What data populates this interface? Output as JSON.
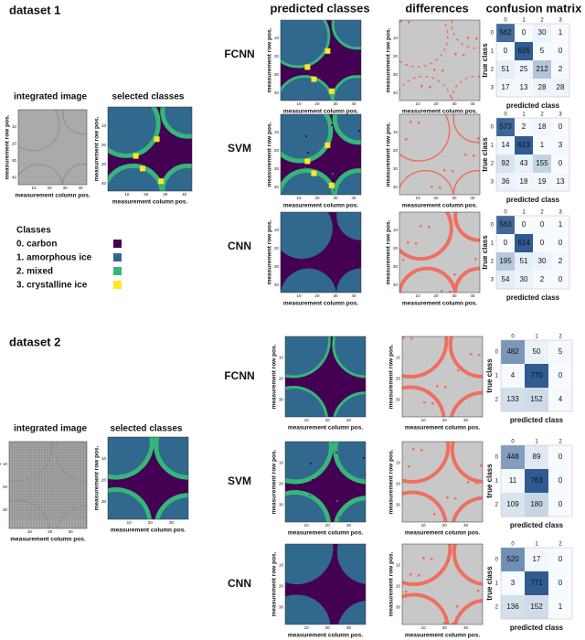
{
  "column_headers": [
    "predicted classes",
    "differences",
    "confusion matrix"
  ],
  "axis_labels": {
    "x": "measurement column pos.",
    "y": "measurement row pos.",
    "cm_x": "predicted class",
    "cm_y": "true class"
  },
  "classes": {
    "title": "Classes",
    "items": [
      "0. carbon",
      "1. amorphous ice",
      "2. mixed",
      "3. crystalline ice"
    ],
    "colors": [
      "#440154",
      "#31688e",
      "#35b779",
      "#fde725"
    ]
  },
  "datasets": [
    {
      "title": "dataset 1",
      "integrated_label": "integrated image",
      "selected_label": "selected classes",
      "map_ticks": [
        10,
        20,
        30,
        40
      ],
      "class_indices": [
        0,
        1,
        2,
        3
      ],
      "methods": [
        {
          "name": "FCNN",
          "matrix": [
            [
              562,
              0,
              30,
              1
            ],
            [
              0,
              626,
              5,
              0
            ],
            [
              51,
              25,
              212,
              2
            ],
            [
              17,
              13,
              28,
              28
            ]
          ]
        },
        {
          "name": "SVM",
          "matrix": [
            [
              573,
              2,
              18,
              0
            ],
            [
              14,
              613,
              1,
              3
            ],
            [
              92,
              43,
              155,
              0
            ],
            [
              36,
              18,
              19,
              13
            ]
          ]
        },
        {
          "name": "CNN",
          "matrix": [
            [
              563,
              0,
              0,
              1
            ],
            [
              0,
              614,
              0,
              0
            ],
            [
              195,
              51,
              30,
              2
            ],
            [
              54,
              30,
              2,
              0
            ]
          ]
        }
      ]
    },
    {
      "title": "dataset 2",
      "integrated_label": "integrated image",
      "selected_label": "selected classes",
      "map_ticks": [
        10,
        20,
        30
      ],
      "class_indices": [
        0,
        1,
        2
      ],
      "methods": [
        {
          "name": "FCNN",
          "matrix": [
            [
              482,
              50,
              5
            ],
            [
              4,
              770,
              0
            ],
            [
              133,
              152,
              4
            ]
          ]
        },
        {
          "name": "SVM",
          "matrix": [
            [
              448,
              89,
              0
            ],
            [
              11,
              763,
              0
            ],
            [
              109,
              180,
              0
            ]
          ]
        },
        {
          "name": "CNN",
          "matrix": [
            [
              520,
              17,
              0
            ],
            [
              3,
              771,
              0
            ],
            [
              136,
              152,
              1
            ]
          ]
        }
      ]
    }
  ]
}
